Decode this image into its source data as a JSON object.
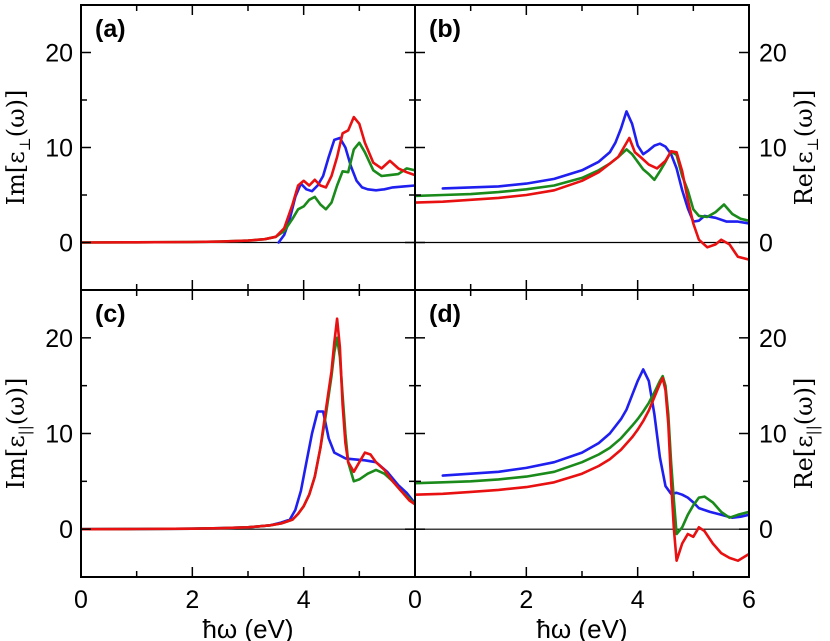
{
  "series_colors": {
    "blue": "#1f1ff0",
    "green": "#1a8a1a",
    "red": "#e81010"
  },
  "xaxis": {
    "label": "ħω (eV)",
    "ticks": [
      "0",
      "2",
      "4",
      "6"
    ]
  },
  "chart_data": [
    {
      "type": "line",
      "id": "a",
      "panel_label": "(a)",
      "ylabel_main": "Im[ε",
      "ylabel_sub": "⊥",
      "ylabel_tail": "(ω)]",
      "y_axis_side": "left",
      "xlim": [
        0,
        6
      ],
      "ylim": [
        -5,
        25
      ],
      "yticks": [
        "0",
        "10",
        "20"
      ],
      "series": [
        {
          "name": "blue",
          "x": [
            3.55,
            3.65,
            3.75,
            3.85,
            3.95,
            4.05,
            4.15,
            4.25,
            4.35,
            4.45,
            4.55,
            4.65,
            4.75,
            4.85,
            4.95,
            5.05,
            5.15,
            5.3,
            5.45,
            5.6,
            5.8,
            6.0
          ],
          "y": [
            0,
            0.8,
            2.5,
            4.8,
            6.2,
            5.6,
            5.4,
            6.0,
            7.0,
            9.0,
            10.8,
            11.0,
            10.0,
            8.0,
            6.5,
            5.8,
            5.6,
            5.5,
            5.6,
            5.8,
            5.9,
            6.0
          ]
        },
        {
          "name": "green",
          "x": [
            0,
            1,
            2,
            2.5,
            3,
            3.3,
            3.5,
            3.65,
            3.8,
            3.9,
            4.0,
            4.1,
            4.2,
            4.3,
            4.4,
            4.5,
            4.6,
            4.7,
            4.8,
            4.9,
            5.0,
            5.1,
            5.25,
            5.4,
            5.55,
            5.7,
            5.85,
            6.0
          ],
          "y": [
            0,
            0.02,
            0.05,
            0.1,
            0.2,
            0.35,
            0.6,
            1.2,
            2.5,
            3.5,
            3.8,
            4.5,
            4.8,
            4.0,
            3.5,
            4.2,
            6.0,
            7.5,
            7.4,
            9.8,
            10.5,
            9.5,
            7.6,
            7.0,
            7.1,
            7.2,
            7.8,
            7.6
          ]
        },
        {
          "name": "red",
          "x": [
            0,
            1,
            2,
            2.5,
            3,
            3.3,
            3.5,
            3.65,
            3.8,
            3.9,
            4.0,
            4.1,
            4.2,
            4.3,
            4.4,
            4.5,
            4.6,
            4.7,
            4.8,
            4.9,
            5.0,
            5.1,
            5.25,
            5.4,
            5.55,
            5.7,
            5.85,
            6.0
          ],
          "y": [
            0,
            0.02,
            0.05,
            0.1,
            0.2,
            0.35,
            0.6,
            1.5,
            4.0,
            6.0,
            6.5,
            6.0,
            6.6,
            6.0,
            5.8,
            7.0,
            9.0,
            11.5,
            11.8,
            13.2,
            12.5,
            10.5,
            8.4,
            7.8,
            8.6,
            7.8,
            7.4,
            7.1
          ]
        }
      ]
    },
    {
      "type": "line",
      "id": "b",
      "panel_label": "(b)",
      "ylabel_main": "Re[ε",
      "ylabel_sub": "⊥",
      "ylabel_tail": "(ω)]",
      "y_axis_side": "right",
      "xlim": [
        0,
        6
      ],
      "ylim": [
        -5,
        25
      ],
      "yticks": [
        "0",
        "10",
        "20"
      ],
      "series": [
        {
          "name": "blue",
          "x": [
            0.5,
            1,
            1.5,
            2,
            2.5,
            3,
            3.3,
            3.5,
            3.6,
            3.7,
            3.8,
            3.9,
            4.0,
            4.1,
            4.2,
            4.3,
            4.4,
            4.5,
            4.6,
            4.7,
            4.8,
            4.9,
            5.0,
            5.1,
            5.2,
            5.4,
            5.6,
            5.8,
            6.0
          ],
          "y": [
            5.7,
            5.8,
            5.9,
            6.2,
            6.7,
            7.6,
            8.5,
            9.5,
            10.5,
            12.0,
            13.8,
            12.5,
            10.2,
            9.3,
            9.7,
            10.2,
            10.4,
            10.1,
            9.3,
            7.8,
            5.5,
            3.6,
            2.2,
            2.3,
            2.8,
            2.6,
            2.2,
            2.2,
            2.0
          ]
        },
        {
          "name": "green",
          "x": [
            0,
            0.5,
            1,
            1.5,
            2,
            2.5,
            3,
            3.3,
            3.5,
            3.65,
            3.8,
            3.9,
            4.0,
            4.1,
            4.2,
            4.3,
            4.4,
            4.5,
            4.6,
            4.7,
            4.8,
            4.9,
            5.0,
            5.1,
            5.25,
            5.4,
            5.55,
            5.7,
            5.85,
            6.0
          ],
          "y": [
            4.9,
            5.0,
            5.1,
            5.3,
            5.6,
            6.0,
            6.8,
            7.6,
            8.3,
            9.0,
            9.8,
            9.3,
            8.5,
            7.7,
            7.2,
            6.6,
            7.5,
            8.5,
            9.6,
            9.2,
            7.0,
            5.5,
            3.5,
            2.8,
            2.7,
            3.2,
            4.0,
            3.0,
            2.5,
            2.3
          ]
        },
        {
          "name": "red",
          "x": [
            0,
            0.5,
            1,
            1.5,
            2,
            2.5,
            3,
            3.3,
            3.5,
            3.65,
            3.75,
            3.85,
            3.95,
            4.05,
            4.2,
            4.35,
            4.5,
            4.6,
            4.7,
            4.8,
            4.9,
            5.0,
            5.1,
            5.25,
            5.4,
            5.5,
            5.65,
            5.8,
            6.0
          ],
          "y": [
            4.2,
            4.3,
            4.5,
            4.7,
            5.0,
            5.5,
            6.5,
            7.4,
            8.3,
            9.0,
            10.0,
            11.0,
            9.5,
            9.0,
            8.2,
            7.8,
            8.6,
            9.6,
            9.5,
            7.5,
            4.5,
            2.0,
            0.3,
            -0.5,
            -0.2,
            0.3,
            -0.2,
            -1.5,
            -1.8
          ]
        }
      ]
    },
    {
      "type": "line",
      "id": "c",
      "panel_label": "(c)",
      "ylabel_main": "Im[ε",
      "ylabel_sub": "||",
      "ylabel_tail": "(ω)]",
      "y_axis_side": "left",
      "xlim": [
        0,
        6
      ],
      "ylim": [
        -5,
        25
      ],
      "yticks": [
        "0",
        "10",
        "20"
      ],
      "series": [
        {
          "name": "blue",
          "x": [
            0,
            1,
            2,
            2.5,
            3,
            3.4,
            3.6,
            3.75,
            3.85,
            3.95,
            4.05,
            4.15,
            4.25,
            4.35,
            4.45,
            4.55,
            4.65,
            4.75,
            4.9,
            5.1,
            5.3,
            5.5,
            5.7,
            5.85,
            6.0
          ],
          "y": [
            0,
            0.02,
            0.05,
            0.1,
            0.2,
            0.4,
            0.7,
            1.0,
            2.0,
            4.0,
            7.0,
            10.0,
            12.3,
            12.3,
            9.5,
            8.0,
            7.7,
            7.4,
            7.3,
            7.2,
            7.0,
            6.0,
            4.6,
            3.8,
            2.7
          ]
        },
        {
          "name": "green",
          "x": [
            0,
            1,
            2,
            2.5,
            3,
            3.4,
            3.6,
            3.8,
            3.9,
            4.0,
            4.1,
            4.2,
            4.3,
            4.4,
            4.5,
            4.55,
            4.6,
            4.65,
            4.7,
            4.75,
            4.8,
            4.9,
            5.0,
            5.15,
            5.3,
            5.45,
            5.6,
            5.75,
            5.9,
            6.0
          ],
          "y": [
            0,
            0.02,
            0.05,
            0.1,
            0.2,
            0.4,
            0.6,
            1.0,
            1.6,
            2.4,
            3.6,
            5.5,
            8.5,
            12.0,
            16.0,
            18.5,
            20.0,
            18.0,
            14.0,
            10.0,
            7.0,
            5.0,
            5.2,
            5.8,
            6.2,
            5.8,
            5.0,
            4.0,
            3.2,
            2.6
          ]
        },
        {
          "name": "red",
          "x": [
            0,
            1,
            2,
            2.5,
            3,
            3.4,
            3.6,
            3.8,
            3.9,
            4.0,
            4.1,
            4.2,
            4.3,
            4.4,
            4.5,
            4.55,
            4.6,
            4.65,
            4.7,
            4.75,
            4.8,
            4.9,
            5.0,
            5.1,
            5.2,
            5.3,
            5.45,
            5.6,
            5.75,
            5.9,
            6.0
          ],
          "y": [
            0,
            0.02,
            0.05,
            0.1,
            0.2,
            0.4,
            0.6,
            1.0,
            1.6,
            2.4,
            3.6,
            5.5,
            8.5,
            12.5,
            16.5,
            19.5,
            22.0,
            19.0,
            13.0,
            9.0,
            7.0,
            6.0,
            7.0,
            8.0,
            7.8,
            7.0,
            6.2,
            5.0,
            4.0,
            3.0,
            2.6
          ]
        }
      ]
    },
    {
      "type": "line",
      "id": "d",
      "panel_label": "(d)",
      "ylabel_main": "Re[ε",
      "ylabel_sub": "||",
      "ylabel_tail": "(ω)]",
      "y_axis_side": "right",
      "xlim": [
        0,
        6
      ],
      "ylim": [
        -5,
        25
      ],
      "yticks": [
        "0",
        "10",
        "20"
      ],
      "series": [
        {
          "name": "blue",
          "x": [
            0.5,
            1,
            1.5,
            2,
            2.5,
            3,
            3.3,
            3.5,
            3.7,
            3.8,
            3.9,
            4.0,
            4.1,
            4.2,
            4.3,
            4.4,
            4.5,
            4.6,
            4.7,
            4.8,
            4.9,
            5.0,
            5.1,
            5.3,
            5.5,
            5.7,
            5.85,
            6.0
          ],
          "y": [
            5.6,
            5.8,
            6.0,
            6.4,
            7.0,
            8.0,
            9.0,
            10.0,
            11.5,
            12.5,
            14.0,
            15.5,
            16.7,
            15.5,
            12.0,
            7.5,
            4.5,
            3.7,
            3.8,
            3.6,
            3.3,
            2.8,
            2.2,
            1.8,
            1.5,
            1.2,
            1.3,
            1.5
          ]
        },
        {
          "name": "green",
          "x": [
            0,
            0.5,
            1,
            1.5,
            2,
            2.5,
            3,
            3.3,
            3.5,
            3.7,
            3.9,
            4.0,
            4.1,
            4.2,
            4.3,
            4.4,
            4.45,
            4.5,
            4.55,
            4.6,
            4.65,
            4.7,
            4.8,
            4.9,
            5.0,
            5.1,
            5.2,
            5.35,
            5.5,
            5.65,
            5.8,
            6.0
          ],
          "y": [
            4.8,
            4.9,
            5.0,
            5.2,
            5.5,
            6.0,
            7.0,
            7.8,
            8.5,
            9.5,
            10.8,
            11.5,
            12.3,
            13.2,
            14.3,
            15.5,
            16.0,
            15.0,
            12.0,
            7.0,
            3.0,
            -0.5,
            0.2,
            1.5,
            2.5,
            3.3,
            3.4,
            2.8,
            1.8,
            1.2,
            1.5,
            1.8
          ]
        },
        {
          "name": "red",
          "x": [
            0,
            0.5,
            1,
            1.5,
            2,
            2.5,
            3,
            3.3,
            3.5,
            3.7,
            3.9,
            4.0,
            4.1,
            4.2,
            4.3,
            4.4,
            4.45,
            4.5,
            4.55,
            4.6,
            4.65,
            4.7,
            4.8,
            4.9,
            5.0,
            5.1,
            5.2,
            5.35,
            5.5,
            5.65,
            5.8,
            6.0
          ],
          "y": [
            3.6,
            3.7,
            3.9,
            4.1,
            4.4,
            4.9,
            5.8,
            6.6,
            7.3,
            8.3,
            9.6,
            10.4,
            11.3,
            12.4,
            13.8,
            15.2,
            15.8,
            14.5,
            11.0,
            5.0,
            0.0,
            -3.3,
            -1.5,
            -0.5,
            -0.8,
            0.2,
            -0.2,
            -1.5,
            -2.5,
            -3.0,
            -3.3,
            -2.6
          ]
        }
      ]
    }
  ]
}
